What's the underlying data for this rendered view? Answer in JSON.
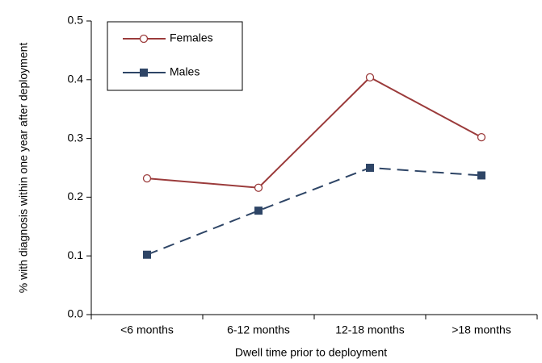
{
  "chart_data": {
    "type": "line",
    "x_label": "Dwell time prior to deployment",
    "y_label": "% with diagnosis within one year after deployment",
    "categories": [
      "<6 months",
      "6-12 months",
      "12-18 months",
      ">18 months"
    ],
    "series": [
      {
        "name": "Females",
        "color": "#9b3b3b",
        "marker": "circle",
        "dashed": false,
        "values": [
          0.232,
          0.216,
          0.404,
          0.302
        ]
      },
      {
        "name": "Males",
        "color": "#2e4566",
        "marker": "square",
        "dashed": true,
        "values": [
          0.102,
          0.177,
          0.25,
          0.237
        ]
      }
    ],
    "ylim": [
      0,
      0.5
    ],
    "yticks": [
      {
        "value": 0,
        "label": "0.0"
      },
      0.1,
      0.2,
      0.3,
      0.4,
      0.5
    ],
    "legend": "upper left"
  }
}
